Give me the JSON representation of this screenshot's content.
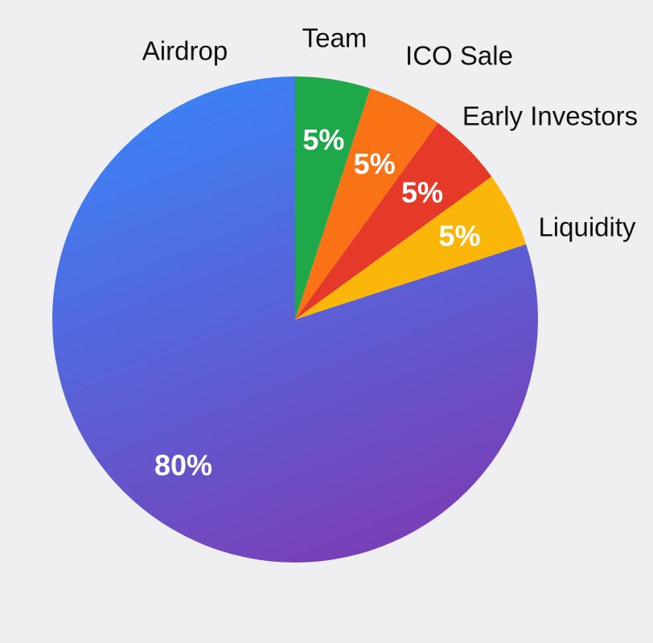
{
  "chart_data": {
    "type": "pie",
    "slices": [
      {
        "label": "Team",
        "value": 5,
        "value_label": "5%",
        "color": "#1fa84a"
      },
      {
        "label": "ICO Sale",
        "value": 5,
        "value_label": "5%",
        "color": "#f97316"
      },
      {
        "label": "Early Investors",
        "value": 5,
        "value_label": "5%",
        "color": "#e53a2a"
      },
      {
        "label": "Liquidity",
        "value": 5,
        "value_label": "5%",
        "color": "#fab70a"
      },
      {
        "label": "Airdrop",
        "value": 80,
        "value_label": "80%",
        "color": "#3b82f6",
        "gradient_end_color": "#7b3db5"
      }
    ],
    "start_angle": "12 o'clock",
    "direction": "clockwise",
    "legend": "none",
    "labels": "outside for names, inside for percentages"
  }
}
